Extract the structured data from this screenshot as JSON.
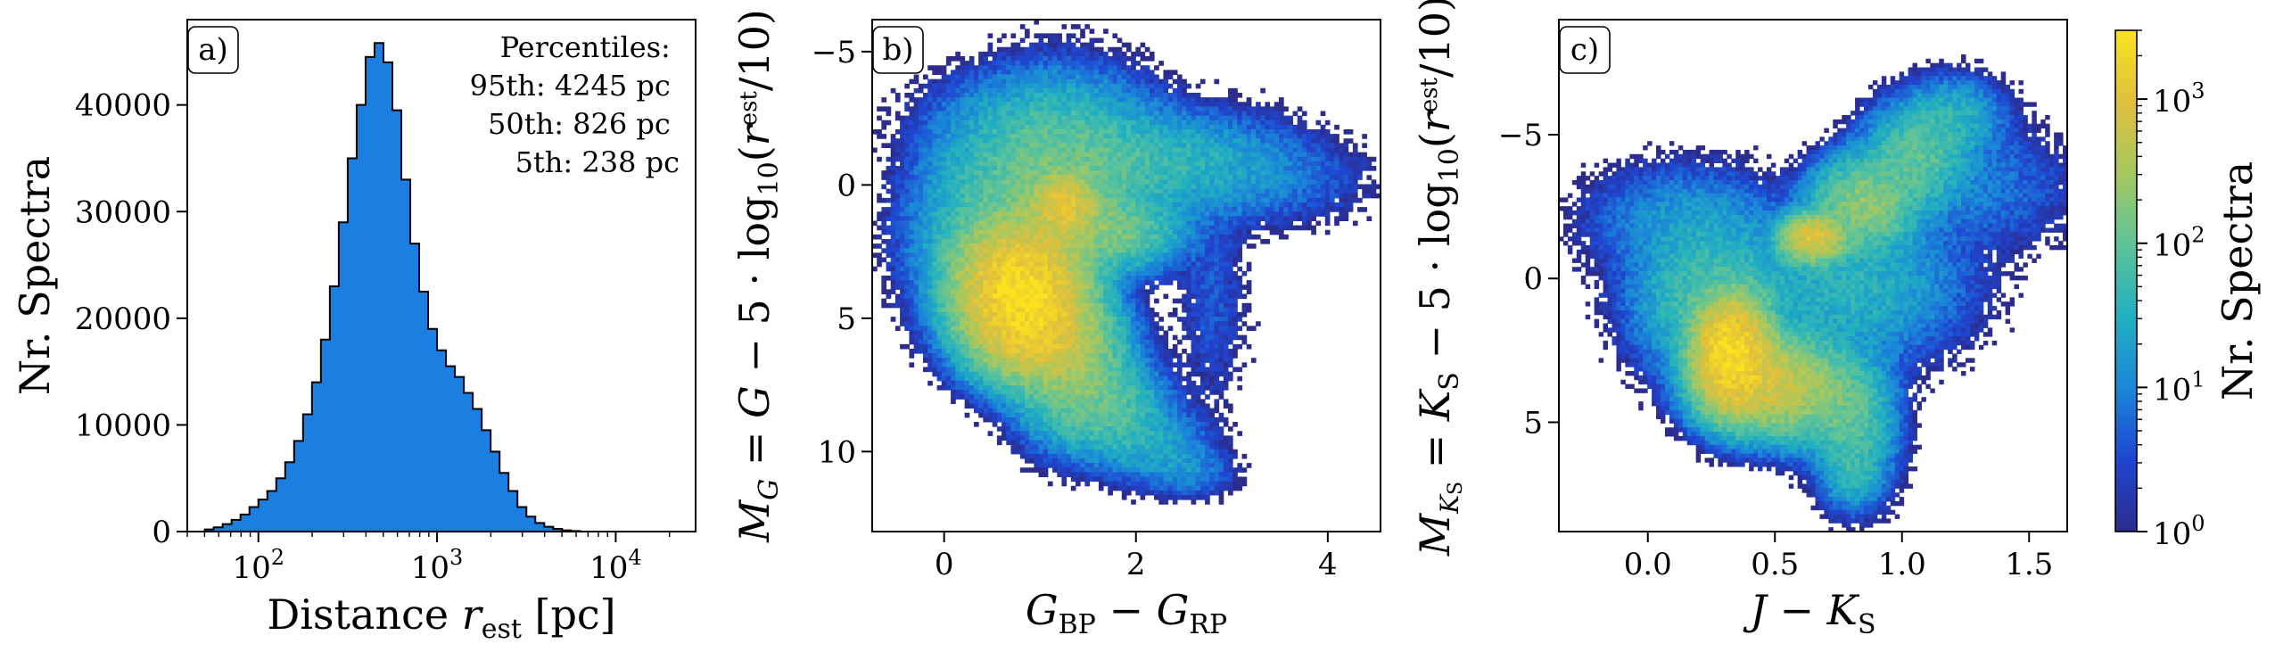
{
  "figure": {
    "colors": {
      "hist_fill": "#1a7fe0",
      "hist_edge": "#000000",
      "colormap": [
        "#2c2c8c",
        "#1f46d1",
        "#1a86d8",
        "#22b0c0",
        "#5cc39a",
        "#a6c860",
        "#e0c03c",
        "#fbe11e"
      ]
    }
  },
  "chart_data": [
    {
      "type": "bar",
      "panel_label": "a)",
      "xlabel_parts": [
        "Distance ",
        "r",
        "est",
        " [pc]"
      ],
      "ylabel": "Nr. Spectra",
      "x_scale": "log",
      "xlim": [
        40,
        28000
      ],
      "ylim": [
        0,
        48000
      ],
      "x_ticks": [
        {
          "value": 100,
          "base": "10",
          "exp": "2"
        },
        {
          "value": 1000,
          "base": "10",
          "exp": "3"
        },
        {
          "value": 10000,
          "base": "10",
          "exp": "4"
        }
      ],
      "y_ticks": [
        0,
        10000,
        20000,
        30000,
        40000
      ],
      "y_tick_labels": [
        "0",
        "10000",
        "20000",
        "30000",
        "40000"
      ],
      "annotation": [
        "Percentiles:",
        "95th: 4245 pc",
        "50th: 826 pc",
        "5th: 238 pc"
      ],
      "percentiles": {
        "p95": 4245,
        "p50": 826,
        "p5": 238
      },
      "log10_bin_edges_start": 1.7,
      "log10_bin_width": 0.05,
      "values": [
        200,
        400,
        700,
        1100,
        1600,
        2300,
        3000,
        3800,
        5000,
        6500,
        8500,
        11000,
        14000,
        18000,
        23000,
        29000,
        35000,
        40000,
        44500,
        45800,
        44000,
        39500,
        33000,
        27000,
        22500,
        19000,
        17000,
        15500,
        14500,
        13000,
        11500,
        9500,
        7500,
        5500,
        3800,
        2300,
        1400,
        800,
        450,
        250,
        120,
        50
      ]
    },
    {
      "type": "heatmap",
      "panel_label": "b)",
      "xlabel": "G_BP − G_RP",
      "ylabel": "M_G = G − 5 · log10(r_est / 10)",
      "xlim": [
        -0.75,
        4.55
      ],
      "ylim": [
        13,
        -6.2
      ],
      "y_inverted": true,
      "x_ticks": [
        0,
        2,
        4
      ],
      "y_ticks": [
        -5,
        0,
        5,
        10
      ],
      "x_tick_labels": [
        "0",
        "2",
        "4"
      ],
      "y_tick_labels": [
        "−5",
        "0",
        "5",
        "10"
      ],
      "density_components": [
        {
          "x": 0.8,
          "y": 4.0,
          "sx": 0.3,
          "sy": 1.2,
          "amp": 2500
        },
        {
          "x": 1.0,
          "y": 5.5,
          "sx": 0.3,
          "sy": 0.9,
          "amp": 800
        },
        {
          "x": 1.35,
          "y": 7.0,
          "sx": 0.3,
          "sy": 1.2,
          "amp": 180
        },
        {
          "x": 1.75,
          "y": 8.5,
          "sx": 0.3,
          "sy": 0.9,
          "amp": 60
        },
        {
          "x": 2.2,
          "y": 9.8,
          "sx": 0.3,
          "sy": 0.7,
          "amp": 22
        },
        {
          "x": 2.55,
          "y": 10.8,
          "sx": 0.25,
          "sy": 0.5,
          "amp": 10
        },
        {
          "x": 1.25,
          "y": 0.8,
          "sx": 0.18,
          "sy": 0.6,
          "amp": 900
        },
        {
          "x": 1.7,
          "y": 1.8,
          "sx": 0.35,
          "sy": 0.7,
          "amp": 150
        },
        {
          "x": 1.2,
          "y": -0.6,
          "sx": 0.5,
          "sy": 1.6,
          "amp": 110
        },
        {
          "x": 2.2,
          "y": -0.8,
          "sx": 0.7,
          "sy": 1.0,
          "amp": 40
        },
        {
          "x": 0.5,
          "y": 1.8,
          "sx": 0.4,
          "sy": 1.8,
          "amp": 70
        },
        {
          "x": 3.4,
          "y": -0.2,
          "sx": 0.55,
          "sy": 0.9,
          "amp": 6
        },
        {
          "x": 0.6,
          "y": -2.3,
          "sx": 0.5,
          "sy": 1.0,
          "amp": 8
        },
        {
          "x": 2.8,
          "y": 4.2,
          "sx": 0.2,
          "sy": 2.2,
          "amp": 4
        }
      ]
    },
    {
      "type": "heatmap",
      "panel_label": "c)",
      "xlabel": "J − K_S",
      "ylabel": "M_KS = K_S − 5 · log10(r_est / 10)",
      "xlim": [
        -0.35,
        1.65
      ],
      "ylim": [
        8.8,
        -9
      ],
      "y_inverted": true,
      "x_ticks": [
        0,
        0.5,
        1,
        1.5
      ],
      "y_ticks": [
        -5,
        0,
        5
      ],
      "x_tick_labels": [
        "0.0",
        "0.5",
        "1.0",
        "1.5"
      ],
      "y_tick_labels": [
        "−5",
        "0",
        "5"
      ],
      "density_components": [
        {
          "x": 0.33,
          "y": 2.6,
          "sx": 0.07,
          "sy": 0.9,
          "amp": 2500
        },
        {
          "x": 0.45,
          "y": 3.6,
          "sx": 0.12,
          "sy": 0.8,
          "amp": 600
        },
        {
          "x": 0.65,
          "y": 4.0,
          "sx": 0.12,
          "sy": 0.9,
          "amp": 150
        },
        {
          "x": 0.82,
          "y": 5.2,
          "sx": 0.08,
          "sy": 1.2,
          "amp": 60
        },
        {
          "x": 0.65,
          "y": -1.4,
          "sx": 0.06,
          "sy": 0.4,
          "amp": 900
        },
        {
          "x": 0.85,
          "y": -2.6,
          "sx": 0.1,
          "sy": 0.8,
          "amp": 200
        },
        {
          "x": 1.05,
          "y": -4.2,
          "sx": 0.1,
          "sy": 0.9,
          "amp": 90
        },
        {
          "x": 1.2,
          "y": -5.6,
          "sx": 0.1,
          "sy": 0.7,
          "amp": 35
        },
        {
          "x": 0.25,
          "y": 0.7,
          "sx": 0.15,
          "sy": 1.3,
          "amp": 70
        },
        {
          "x": 0.15,
          "y": -2.0,
          "sx": 0.2,
          "sy": 1.0,
          "amp": 15
        },
        {
          "x": 0.8,
          "y": 0.3,
          "sx": 0.22,
          "sy": 1.3,
          "amp": 35
        },
        {
          "x": 1.3,
          "y": -3.2,
          "sx": 0.2,
          "sy": 1.2,
          "amp": 8
        },
        {
          "x": 0.8,
          "y": 6.8,
          "sx": 0.06,
          "sy": 0.6,
          "amp": 25
        }
      ]
    },
    {
      "type": "colorbar",
      "label": "Nr. Spectra",
      "scale": "log",
      "range": [
        1,
        3000
      ],
      "ticks": [
        {
          "value": 1,
          "exp": "0"
        },
        {
          "value": 10,
          "exp": "1"
        },
        {
          "value": 100,
          "exp": "2"
        },
        {
          "value": 1000,
          "exp": "3"
        }
      ]
    }
  ]
}
